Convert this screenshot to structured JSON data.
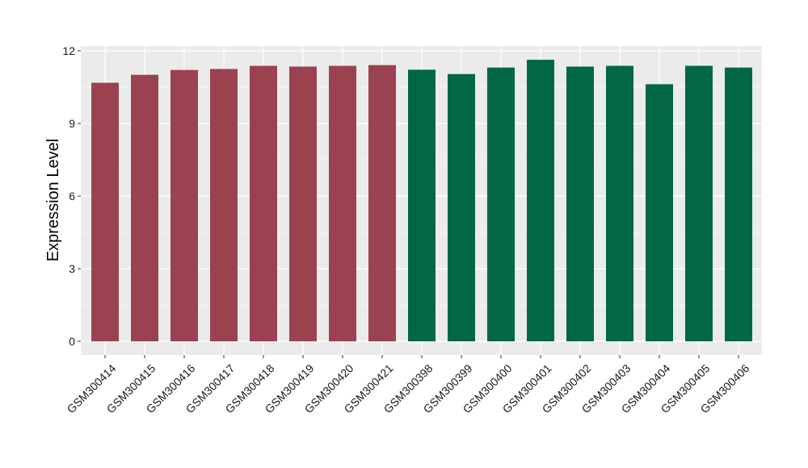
{
  "chart_data": {
    "type": "bar",
    "title": "",
    "xlabel": "",
    "ylabel": "Expression Level",
    "ylim": [
      0,
      12.6
    ],
    "yticks": [
      0,
      3,
      6,
      9,
      12
    ],
    "yticks_labels": [
      "0",
      "3",
      "6",
      "9",
      "12"
    ],
    "grid": true,
    "categories": [
      "GSM300414",
      "GSM300415",
      "GSM300416",
      "GSM300417",
      "GSM300418",
      "GSM300419",
      "GSM300420",
      "GSM300421",
      "GSM300398",
      "GSM300399",
      "GSM300400",
      "GSM300401",
      "GSM300402",
      "GSM300403",
      "GSM300404",
      "GSM300405",
      "GSM300406"
    ],
    "values": [
      10.68,
      11.01,
      11.21,
      11.25,
      11.38,
      11.35,
      11.38,
      11.41,
      11.22,
      11.04,
      11.31,
      11.63,
      11.35,
      11.38,
      10.62,
      11.38,
      11.31
    ],
    "group_colors": [
      "#9b4250",
      "#9b4250",
      "#9b4250",
      "#9b4250",
      "#9b4250",
      "#9b4250",
      "#9b4250",
      "#9b4250",
      "#016745",
      "#016745",
      "#016745",
      "#016745",
      "#016745",
      "#016745",
      "#016745",
      "#016745",
      "#016745"
    ],
    "panel_background": "#ebebeb",
    "grid_color": "#ffffff"
  }
}
